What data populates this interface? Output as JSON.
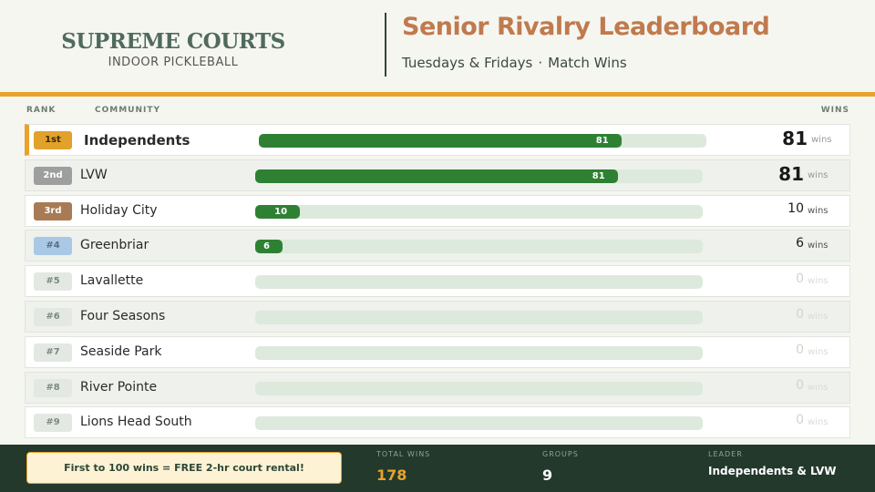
{
  "brand": {
    "name": "SUPREME COURTS",
    "subtitle": "INDOOR PICKLEBALL"
  },
  "header": {
    "title": "Senior Rivalry Leaderboard",
    "schedule": "Tuesdays & Fridays",
    "separator": "·",
    "metric": "Match Wins"
  },
  "columns": {
    "rank": "RANK",
    "community": "COMMUNITY",
    "wins": "WINS"
  },
  "max_wins": 100,
  "rows": [
    {
      "rank": "1st",
      "name": "Independents",
      "wins": "81",
      "bar_label": "81",
      "unit": "wins",
      "value": 81
    },
    {
      "rank": "2nd",
      "name": "LVW",
      "wins": "81",
      "bar_label": "81",
      "unit": "wins",
      "value": 81
    },
    {
      "rank": "3rd",
      "name": "Holiday City",
      "wins": "10",
      "bar_label": "10",
      "unit": "wins",
      "value": 10
    },
    {
      "rank": "#4",
      "name": "Greenbriar",
      "wins": "6",
      "bar_label": "6",
      "unit": "wins",
      "value": 6
    },
    {
      "rank": "#5",
      "name": "Lavallette",
      "wins": "0",
      "bar_label": "",
      "unit": "wins",
      "value": 0
    },
    {
      "rank": "#6",
      "name": "Four Seasons",
      "wins": "0",
      "bar_label": "",
      "unit": "wins",
      "value": 0
    },
    {
      "rank": "#7",
      "name": "Seaside Park",
      "wins": "0",
      "bar_label": "",
      "unit": "wins",
      "value": 0
    },
    {
      "rank": "#8",
      "name": "River Pointe",
      "wins": "0",
      "bar_label": "",
      "unit": "wins",
      "value": 0
    },
    {
      "rank": "#9",
      "name": "Lions Head South",
      "wins": "0",
      "bar_label": "",
      "unit": "wins",
      "value": 0
    }
  ],
  "footer": {
    "promo": "First to 100 wins = FREE 2-hr court rental!",
    "total_label": "TOTAL WINS",
    "total_value": "178",
    "groups_label": "GROUPS",
    "groups_value": "9",
    "leader_label": "LEADER",
    "leader_value": "Independents & LVW"
  },
  "colors": {
    "accent": "#e9a22a",
    "bar": "#2e8132",
    "title": "#c07a4e",
    "footer": "#23392c"
  }
}
